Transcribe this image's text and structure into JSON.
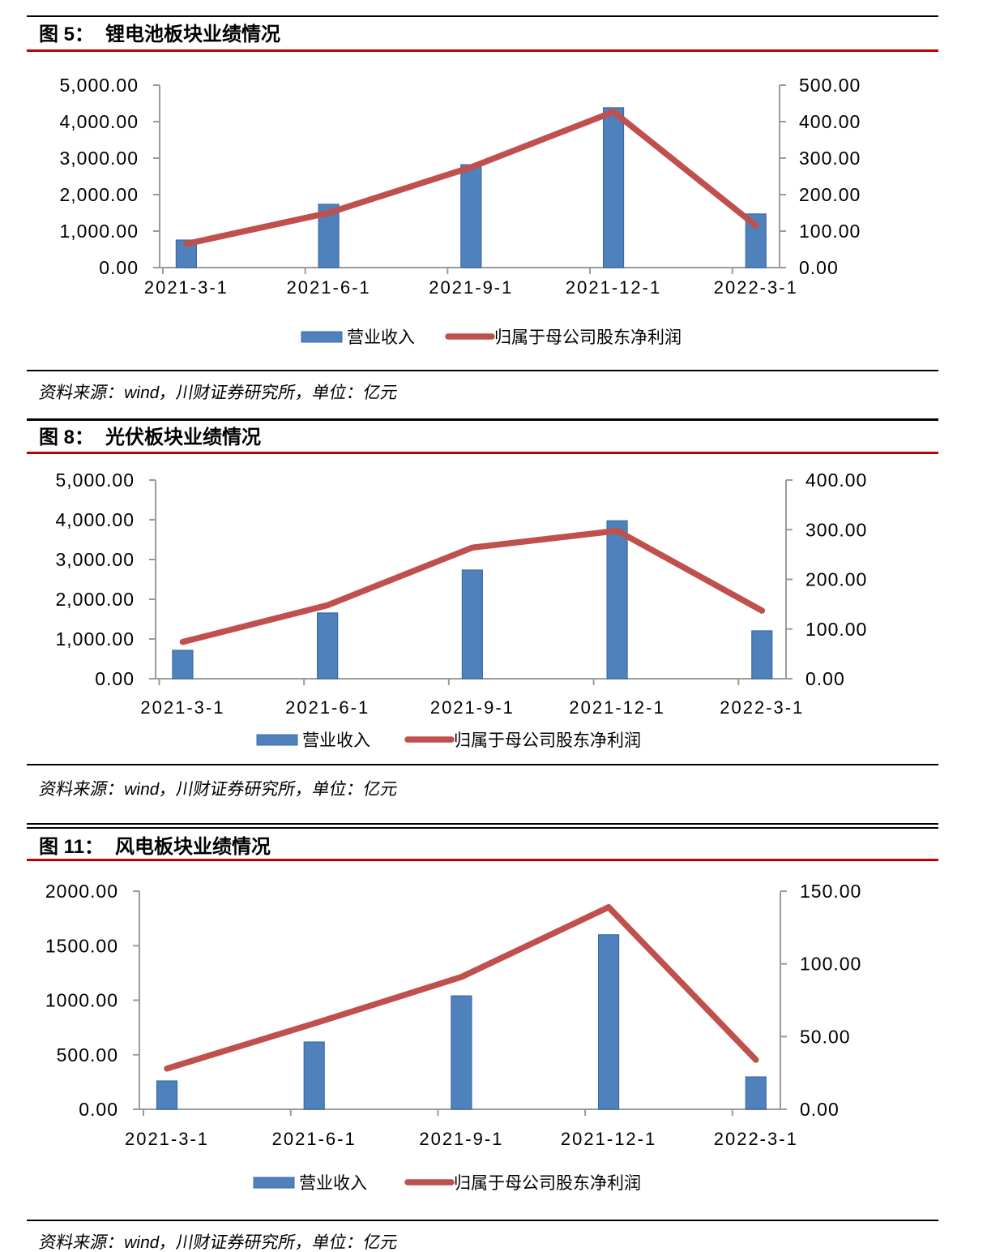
{
  "colors": {
    "bar_fill": "#4f81bd",
    "bar_border": "#3c6aa6",
    "line": "#c0504d",
    "axis": "#9a9a9a",
    "title_rule": "#c00000",
    "separator": "#000000"
  },
  "charts": [
    {
      "figure_no": "图 5：",
      "title": "锂电池板块业绩情况",
      "source_note": "资料来源：wind，川财证券研究所，单位：亿元",
      "chart_data": {
        "type": "bar+line",
        "categories": [
          "2021-3-1",
          "2021-6-1",
          "2021-9-1",
          "2021-12-1",
          "2022-3-1"
        ],
        "series": [
          {
            "name": "营业收入",
            "type": "bar",
            "axis": "left",
            "values": [
              755,
              1735,
              2820,
              4380,
              1470
            ]
          },
          {
            "name": "归属于母公司股东净利润",
            "type": "line",
            "axis": "right",
            "values": [
              65,
              150,
              275,
              427,
              115
            ]
          }
        ],
        "left_axis": {
          "min": 0,
          "max": 5000,
          "step": 1000,
          "grouping": true
        },
        "right_axis": {
          "min": 0,
          "max": 500,
          "step": 100,
          "grouping": false
        },
        "legend_position": "bottom",
        "grid": false
      }
    },
    {
      "figure_no": "图 8：",
      "title": "光伏板块业绩情况",
      "source_note": "资料来源：wind，川财证券研究所，单位：亿元",
      "chart_data": {
        "type": "bar+line",
        "categories": [
          "2021-3-1",
          "2021-6-1",
          "2021-9-1",
          "2021-12-1",
          "2022-3-1"
        ],
        "series": [
          {
            "name": "营业收入",
            "type": "bar",
            "axis": "left",
            "values": [
              715,
              1655,
              2735,
              3975,
              1205
            ]
          },
          {
            "name": "归属于母公司股东净利润",
            "type": "line",
            "axis": "right",
            "values": [
              74,
              148,
              264,
              298,
              137
            ]
          }
        ],
        "left_axis": {
          "min": 0,
          "max": 5000,
          "step": 1000,
          "grouping": true
        },
        "right_axis": {
          "min": 0,
          "max": 400,
          "step": 100,
          "grouping": false
        },
        "legend_position": "bottom",
        "grid": false
      }
    },
    {
      "figure_no": "图 11：",
      "title": "风电板块业绩情况",
      "source_note": "资料来源：wind，川财证券研究所，单位：亿元",
      "chart_data": {
        "type": "bar+line",
        "categories": [
          "2021-3-1",
          "2021-6-1",
          "2021-9-1",
          "2021-12-1",
          "2022-3-1"
        ],
        "series": [
          {
            "name": "营业收入",
            "type": "bar",
            "axis": "left",
            "values": [
              260,
              617,
              1040,
              1600,
              297
            ]
          },
          {
            "name": "归属于母公司股东净利润",
            "type": "line",
            "axis": "right",
            "values": [
              28,
              59,
              91,
              139,
              34
            ]
          }
        ],
        "left_axis": {
          "min": 0,
          "max": 2000,
          "step": 500,
          "grouping": false
        },
        "right_axis": {
          "min": 0,
          "max": 150,
          "step": 50,
          "grouping": false
        },
        "legend_position": "bottom",
        "grid": false
      }
    }
  ]
}
